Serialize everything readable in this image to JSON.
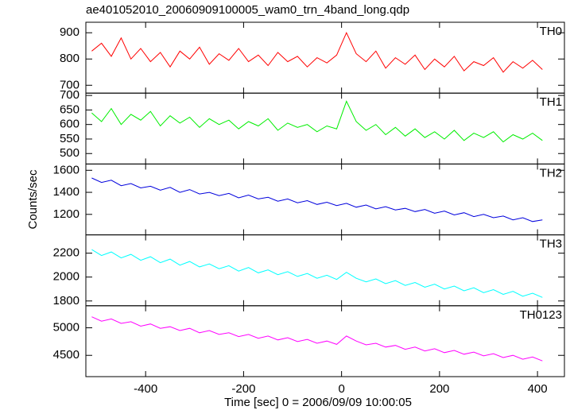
{
  "chart_data": {
    "type": "line",
    "title": "ae401052010_20060909100005_wam0_trn_4band_long.qdp",
    "xlabel": "Time [sec] 0 = 2006/09/09 10:00:05",
    "ylabel": "Counts/sec",
    "xlim": [
      -522,
      455
    ],
    "xticks": [
      -400,
      -200,
      0,
      200,
      400
    ],
    "x": [
      -510,
      -490,
      -470,
      -450,
      -430,
      -410,
      -390,
      -370,
      -350,
      -330,
      -310,
      -290,
      -270,
      -250,
      -230,
      -210,
      -190,
      -170,
      -150,
      -130,
      -110,
      -90,
      -70,
      -50,
      -30,
      -10,
      10,
      30,
      50,
      70,
      90,
      110,
      130,
      150,
      170,
      190,
      210,
      230,
      250,
      270,
      290,
      310,
      330,
      350,
      370,
      390,
      410
    ],
    "series": [
      {
        "name": "TH0",
        "color": "#ff0000",
        "ylim": [
          670,
          940
        ],
        "yticks": [
          700,
          800,
          900
        ],
        "values": [
          830,
          860,
          810,
          880,
          800,
          840,
          790,
          825,
          770,
          830,
          800,
          845,
          780,
          820,
          795,
          840,
          790,
          815,
          775,
          825,
          790,
          810,
          770,
          805,
          785,
          815,
          900,
          820,
          790,
          830,
          765,
          805,
          780,
          815,
          760,
          800,
          770,
          810,
          755,
          790,
          775,
          805,
          750,
          790,
          765,
          795,
          760
        ]
      },
      {
        "name": "TH1",
        "color": "#00ee00",
        "ylim": [
          464,
          708
        ],
        "yticks": [
          500,
          550,
          600,
          650,
          700
        ],
        "values": [
          640,
          610,
          655,
          600,
          635,
          615,
          645,
          595,
          630,
          605,
          625,
          590,
          620,
          600,
          615,
          585,
          610,
          595,
          620,
          580,
          605,
          590,
          600,
          575,
          595,
          585,
          680,
          610,
          580,
          600,
          565,
          590,
          560,
          585,
          555,
          575,
          550,
          580,
          545,
          570,
          555,
          575,
          540,
          565,
          550,
          570,
          545
        ]
      },
      {
        "name": "TH2",
        "color": "#0000dd",
        "ylim": [
          1014,
          1657
        ],
        "yticks": [
          1200,
          1400,
          1600
        ],
        "values": [
          1530,
          1490,
          1510,
          1460,
          1480,
          1440,
          1455,
          1420,
          1445,
          1400,
          1425,
          1385,
          1400,
          1370,
          1390,
          1350,
          1375,
          1340,
          1355,
          1320,
          1340,
          1305,
          1325,
          1290,
          1310,
          1280,
          1300,
          1265,
          1285,
          1250,
          1270,
          1240,
          1255,
          1225,
          1245,
          1210,
          1230,
          1195,
          1215,
          1180,
          1200,
          1170,
          1185,
          1150,
          1170,
          1135,
          1150
        ]
      },
      {
        "name": "TH3",
        "color": "#00ffff",
        "ylim": [
          1760,
          2353
        ],
        "yticks": [
          1800,
          2000,
          2200
        ],
        "values": [
          2230,
          2180,
          2210,
          2160,
          2190,
          2140,
          2170,
          2120,
          2150,
          2100,
          2130,
          2085,
          2110,
          2070,
          2095,
          2050,
          2080,
          2035,
          2060,
          2020,
          2045,
          2005,
          2030,
          1990,
          2015,
          1980,
          2040,
          1990,
          1960,
          1985,
          1945,
          1970,
          1930,
          1955,
          1915,
          1940,
          1900,
          1925,
          1885,
          1910,
          1870,
          1895,
          1855,
          1880,
          1840,
          1865,
          1830
        ]
      },
      {
        "name": "TH0123",
        "color": "#ff00ff",
        "ylim": [
          4114,
          5400
        ],
        "yticks": [
          4500,
          5000
        ],
        "values": [
          5200,
          5120,
          5160,
          5080,
          5110,
          5030,
          5070,
          4990,
          5020,
          4950,
          4990,
          4910,
          4950,
          4880,
          4910,
          4840,
          4880,
          4810,
          4850,
          4780,
          4820,
          4750,
          4790,
          4720,
          4760,
          4700,
          4850,
          4760,
          4690,
          4720,
          4650,
          4680,
          4610,
          4650,
          4580,
          4620,
          4550,
          4590,
          4520,
          4560,
          4490,
          4530,
          4460,
          4500,
          4430,
          4470,
          4400
        ]
      }
    ]
  }
}
